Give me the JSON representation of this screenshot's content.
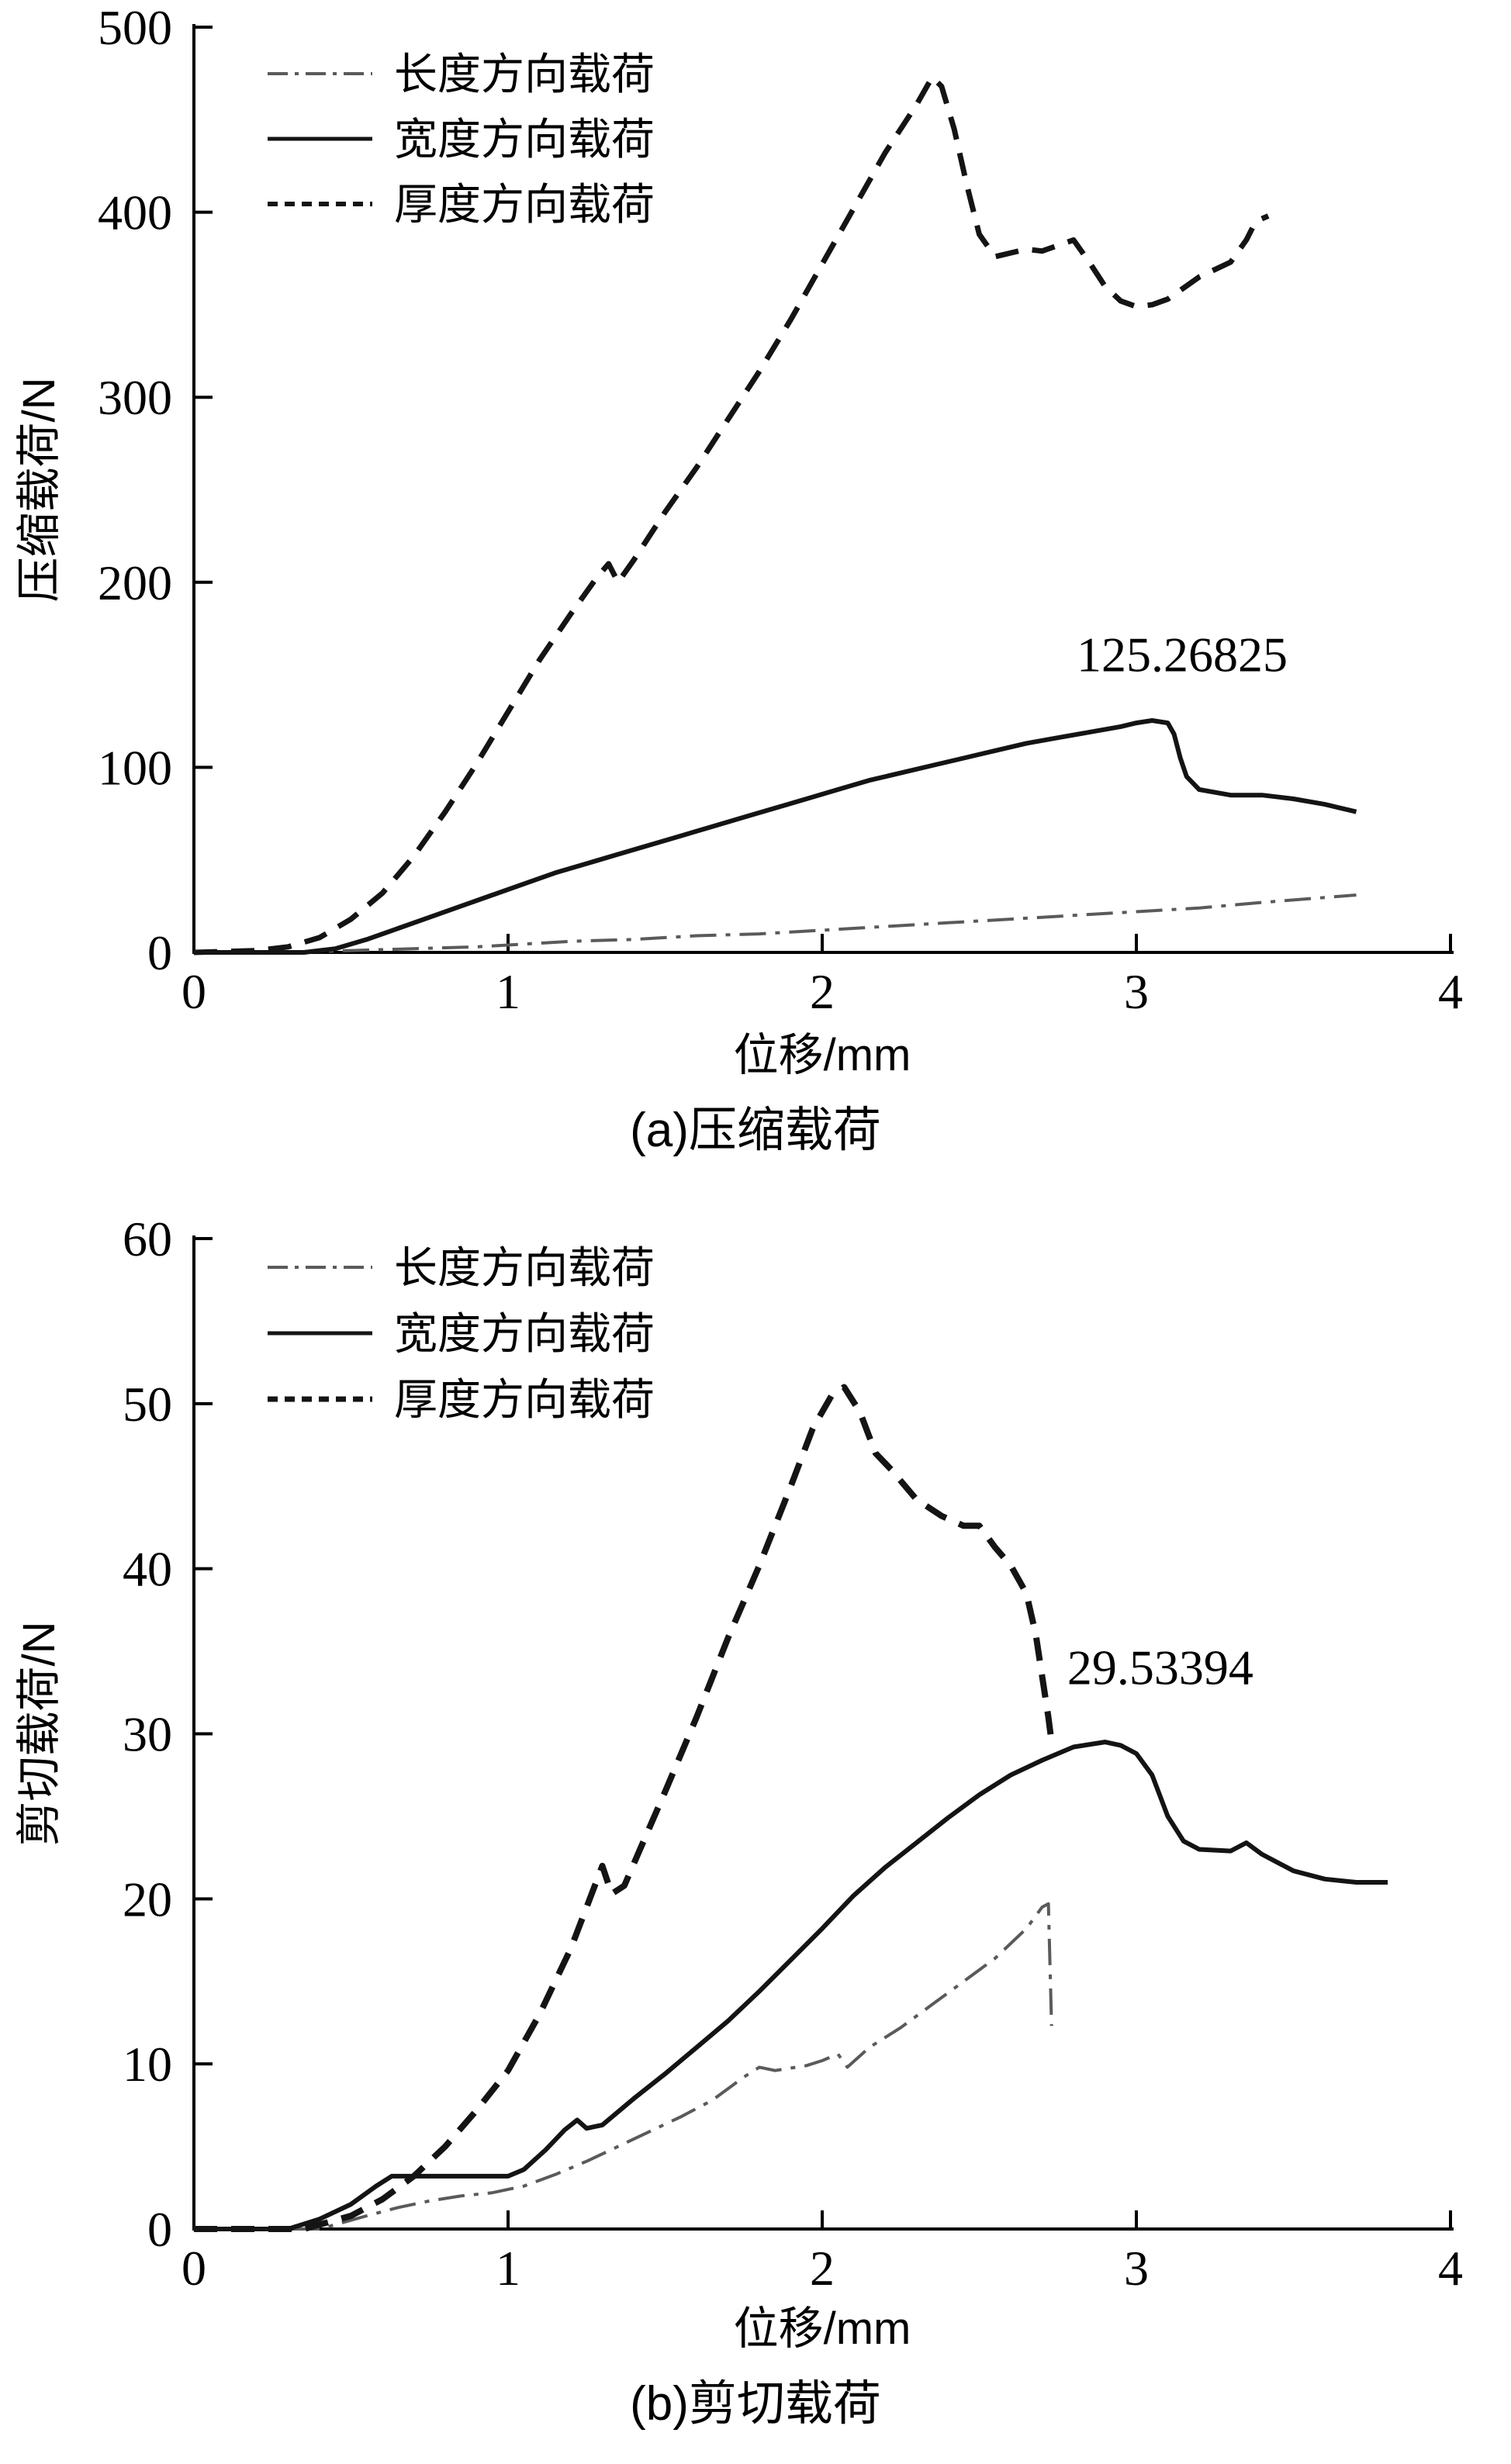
{
  "page": {
    "background": "#ffffff"
  },
  "chart_data": [
    {
      "id": "a",
      "type": "line",
      "caption": "(a)压缩载荷",
      "xlabel": "位移/mm",
      "ylabel": "压缩载荷/N",
      "xlim": [
        0,
        4
      ],
      "ylim": [
        0,
        500
      ],
      "xticks": [
        0,
        1,
        2,
        3,
        4
      ],
      "yticks": [
        0,
        100,
        200,
        300,
        400,
        500
      ],
      "grid": false,
      "legend_position": "top-left",
      "annotation": {
        "text": "125.26825",
        "x": 2.81,
        "y": 152
      },
      "series": [
        {
          "name": "长度方向载荷",
          "style": "dashdot",
          "color": "#5a5a5a",
          "width": 4,
          "points": [
            [
              0,
              0
            ],
            [
              0.3,
              0
            ],
            [
              0.5,
              1
            ],
            [
              0.7,
              2
            ],
            [
              0.9,
              3
            ],
            [
              1.0,
              4
            ],
            [
              1.2,
              6
            ],
            [
              1.4,
              7
            ],
            [
              1.6,
              9
            ],
            [
              1.8,
              10
            ],
            [
              2.0,
              12
            ],
            [
              2.2,
              14
            ],
            [
              2.4,
              16
            ],
            [
              2.6,
              18
            ],
            [
              2.8,
              20
            ],
            [
              3.0,
              22
            ],
            [
              3.2,
              24
            ],
            [
              3.4,
              27
            ],
            [
              3.55,
              29
            ],
            [
              3.7,
              31
            ]
          ]
        },
        {
          "name": "宽度方向载荷",
          "style": "solid",
          "color": "#141414",
          "width": 6,
          "points": [
            [
              0,
              0
            ],
            [
              0.35,
              0
            ],
            [
              0.45,
              2
            ],
            [
              0.55,
              7
            ],
            [
              0.65,
              13
            ],
            [
              0.75,
              19
            ],
            [
              0.85,
              25
            ],
            [
              0.95,
              31
            ],
            [
              1.05,
              37
            ],
            [
              1.15,
              43
            ],
            [
              1.25,
              48
            ],
            [
              1.35,
              53
            ],
            [
              1.45,
              58
            ],
            [
              1.55,
              63
            ],
            [
              1.65,
              68
            ],
            [
              1.75,
              73
            ],
            [
              1.85,
              78
            ],
            [
              1.95,
              83
            ],
            [
              2.05,
              88
            ],
            [
              2.15,
              93
            ],
            [
              2.25,
              97
            ],
            [
              2.35,
              101
            ],
            [
              2.45,
              105
            ],
            [
              2.55,
              109
            ],
            [
              2.65,
              113
            ],
            [
              2.75,
              116
            ],
            [
              2.85,
              119
            ],
            [
              2.95,
              122
            ],
            [
              3.0,
              124
            ],
            [
              3.05,
              125.3
            ],
            [
              3.1,
              124
            ],
            [
              3.12,
              118
            ],
            [
              3.14,
              105
            ],
            [
              3.16,
              95
            ],
            [
              3.2,
              88
            ],
            [
              3.3,
              85
            ],
            [
              3.4,
              85
            ],
            [
              3.5,
              83
            ],
            [
              3.6,
              80
            ],
            [
              3.65,
              78
            ],
            [
              3.7,
              76
            ]
          ]
        },
        {
          "name": "厚度方向载荷",
          "style": "dashed",
          "color": "#141414",
          "width": 7,
          "points": [
            [
              0,
              0
            ],
            [
              0.2,
              1
            ],
            [
              0.3,
              3
            ],
            [
              0.4,
              8
            ],
            [
              0.5,
              18
            ],
            [
              0.6,
              32
            ],
            [
              0.65,
              42
            ],
            [
              0.7,
              52
            ],
            [
              0.8,
              76
            ],
            [
              0.9,
              102
            ],
            [
              1.0,
              130
            ],
            [
              1.1,
              158
            ],
            [
              1.2,
              183
            ],
            [
              1.28,
              202
            ],
            [
              1.32,
              210
            ],
            [
              1.35,
              200
            ],
            [
              1.4,
              212
            ],
            [
              1.5,
              238
            ],
            [
              1.6,
              262
            ],
            [
              1.7,
              288
            ],
            [
              1.8,
              314
            ],
            [
              1.9,
              342
            ],
            [
              2.0,
              372
            ],
            [
              2.1,
              402
            ],
            [
              2.2,
              432
            ],
            [
              2.3,
              458
            ],
            [
              2.35,
              473
            ],
            [
              2.38,
              468
            ],
            [
              2.42,
              445
            ],
            [
              2.46,
              415
            ],
            [
              2.5,
              388
            ],
            [
              2.55,
              376
            ],
            [
              2.6,
              378
            ],
            [
              2.65,
              380
            ],
            [
              2.7,
              379
            ],
            [
              2.75,
              382
            ],
            [
              2.8,
              385
            ],
            [
              2.85,
              373
            ],
            [
              2.9,
              360
            ],
            [
              2.95,
              352
            ],
            [
              3.0,
              349
            ],
            [
              3.05,
              350
            ],
            [
              3.1,
              353
            ],
            [
              3.2,
              365
            ],
            [
              3.3,
              373
            ],
            [
              3.35,
              385
            ],
            [
              3.38,
              395
            ],
            [
              3.42,
              398
            ]
          ]
        }
      ]
    },
    {
      "id": "b",
      "type": "line",
      "caption": "(b)剪切载荷",
      "xlabel": "位移/mm",
      "ylabel": "剪切载荷/N",
      "xlim": [
        0,
        4
      ],
      "ylim": [
        0,
        60
      ],
      "xticks": [
        0,
        1,
        2,
        3,
        4
      ],
      "yticks": [
        0,
        10,
        20,
        30,
        40,
        50,
        60
      ],
      "grid": false,
      "legend_position": "top-left",
      "annotation": {
        "text": "29.53394",
        "x": 2.78,
        "y": 33
      },
      "series": [
        {
          "name": "长度方向载荷",
          "style": "dashdot",
          "color": "#5a5a5a",
          "width": 4,
          "points": [
            [
              0,
              0
            ],
            [
              0.4,
              0
            ],
            [
              0.55,
              0.8
            ],
            [
              0.65,
              1.3
            ],
            [
              0.75,
              1.7
            ],
            [
              0.85,
              2.0
            ],
            [
              0.95,
              2.2
            ],
            [
              1.05,
              2.6
            ],
            [
              1.15,
              3.3
            ],
            [
              1.25,
              4.1
            ],
            [
              1.35,
              5.0
            ],
            [
              1.45,
              5.9
            ],
            [
              1.55,
              6.8
            ],
            [
              1.65,
              7.8
            ],
            [
              1.75,
              9.2
            ],
            [
              1.8,
              9.8
            ],
            [
              1.85,
              9.6
            ],
            [
              1.95,
              9.9
            ],
            [
              2.0,
              10.2
            ],
            [
              2.05,
              10.6
            ],
            [
              2.08,
              9.8
            ],
            [
              2.15,
              11.0
            ],
            [
              2.25,
              12.2
            ],
            [
              2.35,
              13.6
            ],
            [
              2.45,
              15.0
            ],
            [
              2.55,
              16.4
            ],
            [
              2.65,
              18.2
            ],
            [
              2.7,
              19.5
            ],
            [
              2.72,
              19.7
            ],
            [
              2.73,
              12.3
            ]
          ]
        },
        {
          "name": "宽度方向载荷",
          "style": "solid",
          "color": "#141414",
          "width": 6,
          "points": [
            [
              0,
              0
            ],
            [
              0.3,
              0
            ],
            [
              0.4,
              0.6
            ],
            [
              0.5,
              1.5
            ],
            [
              0.58,
              2.6
            ],
            [
              0.63,
              3.2
            ],
            [
              0.8,
              3.2
            ],
            [
              1.0,
              3.2
            ],
            [
              1.05,
              3.6
            ],
            [
              1.12,
              4.8
            ],
            [
              1.18,
              6.0
            ],
            [
              1.22,
              6.6
            ],
            [
              1.25,
              6.1
            ],
            [
              1.3,
              6.3
            ],
            [
              1.4,
              7.9
            ],
            [
              1.5,
              9.4
            ],
            [
              1.6,
              11.0
            ],
            [
              1.7,
              12.6
            ],
            [
              1.8,
              14.4
            ],
            [
              1.9,
              16.3
            ],
            [
              2.0,
              18.2
            ],
            [
              2.1,
              20.2
            ],
            [
              2.2,
              21.9
            ],
            [
              2.3,
              23.4
            ],
            [
              2.4,
              24.9
            ],
            [
              2.5,
              26.3
            ],
            [
              2.6,
              27.5
            ],
            [
              2.7,
              28.4
            ],
            [
              2.8,
              29.2
            ],
            [
              2.9,
              29.5
            ],
            [
              2.95,
              29.3
            ],
            [
              3.0,
              28.8
            ],
            [
              3.05,
              27.5
            ],
            [
              3.1,
              25.0
            ],
            [
              3.15,
              23.5
            ],
            [
              3.2,
              23.0
            ],
            [
              3.3,
              22.9
            ],
            [
              3.35,
              23.4
            ],
            [
              3.4,
              22.7
            ],
            [
              3.5,
              21.7
            ],
            [
              3.6,
              21.2
            ],
            [
              3.7,
              21.0
            ],
            [
              3.8,
              21.0
            ]
          ]
        },
        {
          "name": "厚度方向载荷",
          "style": "dashed",
          "color": "#141414",
          "width": 8,
          "points": [
            [
              0,
              0
            ],
            [
              0.35,
              0
            ],
            [
              0.5,
              0.8
            ],
            [
              0.6,
              1.8
            ],
            [
              0.7,
              3.2
            ],
            [
              0.8,
              5.0
            ],
            [
              0.9,
              7.2
            ],
            [
              1.0,
              9.6
            ],
            [
              1.1,
              13.0
            ],
            [
              1.2,
              17.0
            ],
            [
              1.27,
              20.5
            ],
            [
              1.3,
              22.0
            ],
            [
              1.33,
              20.3
            ],
            [
              1.37,
              20.8
            ],
            [
              1.42,
              23.0
            ],
            [
              1.5,
              26.5
            ],
            [
              1.6,
              31.0
            ],
            [
              1.7,
              35.8
            ],
            [
              1.8,
              40.2
            ],
            [
              1.9,
              45.0
            ],
            [
              1.97,
              48.5
            ],
            [
              2.03,
              50.5
            ],
            [
              2.07,
              51.0
            ],
            [
              2.12,
              49.5
            ],
            [
              2.17,
              47.0
            ],
            [
              2.22,
              46.0
            ],
            [
              2.3,
              44.2
            ],
            [
              2.38,
              43.2
            ],
            [
              2.45,
              42.6
            ],
            [
              2.5,
              42.6
            ],
            [
              2.55,
              41.3
            ],
            [
              2.6,
              40.2
            ],
            [
              2.65,
              38.5
            ],
            [
              2.68,
              36.0
            ],
            [
              2.7,
              33.5
            ],
            [
              2.72,
              31.0
            ],
            [
              2.73,
              29.5
            ]
          ]
        }
      ]
    }
  ]
}
